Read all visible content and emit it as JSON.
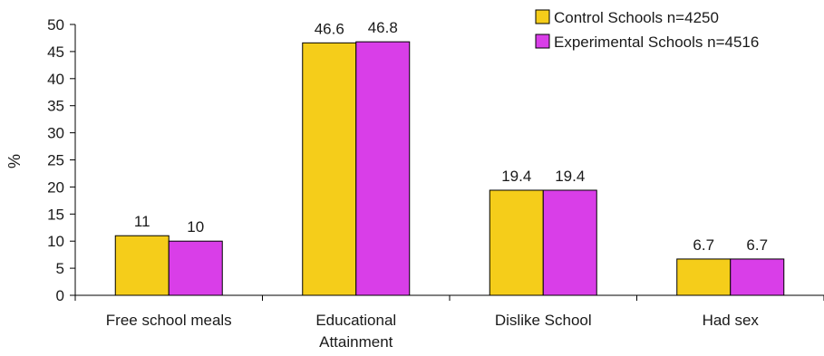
{
  "chart_data": {
    "type": "bar",
    "ylabel": "%",
    "xlabel": "",
    "ylim": [
      0,
      50
    ],
    "yticks": [
      0,
      5,
      10,
      15,
      20,
      25,
      30,
      35,
      40,
      45,
      50
    ],
    "categories": [
      [
        "Free school meals"
      ],
      [
        "Educational",
        "Attainment"
      ],
      [
        "Dislike School"
      ],
      [
        "Had sex"
      ]
    ],
    "series": [
      {
        "name": "Control Schools n=4250",
        "color": "#f5cd1a",
        "values": [
          11,
          46.6,
          19.4,
          6.7
        ],
        "labels": [
          "11",
          "46.6",
          "19.4",
          "6.7"
        ]
      },
      {
        "name": "Experimental Schools n=4516",
        "color": "#d93ee8",
        "values": [
          10,
          46.8,
          19.4,
          6.7
        ],
        "labels": [
          "10",
          "46.8",
          "19.4",
          "6.7"
        ]
      }
    ],
    "grid": false,
    "legend_position": "top-right"
  }
}
